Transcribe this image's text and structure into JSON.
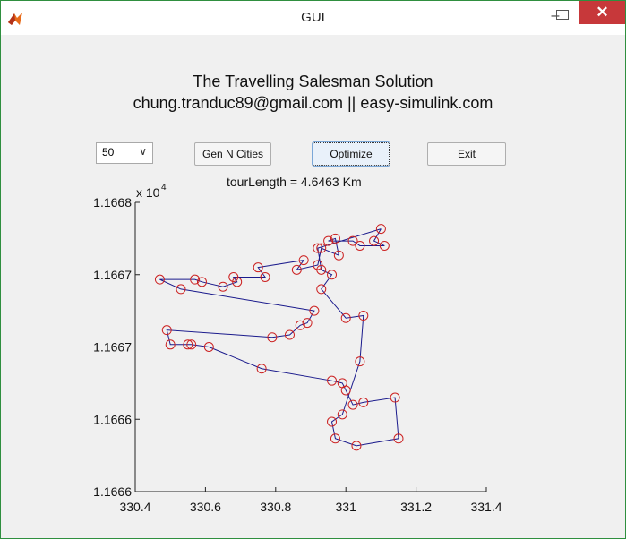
{
  "window": {
    "title": "GUI",
    "minimize_glyph": "–",
    "close_glyph": "✕",
    "icon": "matlab-icon"
  },
  "header": {
    "line1": "The Travelling Salesman Solution",
    "line2": "chung.tranduc89@gmail.com || easy-simulink.com"
  },
  "controls": {
    "city_count_value": "50",
    "dropdown_glyph": "∨",
    "gen_button": "Gen N Cities",
    "optimize_button": "Optimize",
    "exit_button": "Exit"
  },
  "status": {
    "tour_length": "tourLength = 4.6463 Km"
  },
  "chart_data": {
    "type": "line",
    "title": "",
    "xlabel": "",
    "ylabel": "",
    "y_exponent": "x 10",
    "y_exponent_power": "4",
    "xlim": [
      330.4,
      331.4
    ],
    "ylim": [
      11665.6,
      11666.8
    ],
    "x_tick_labels": [
      "330.4",
      "330.6",
      "330.8",
      "331",
      "331.2",
      "331.4"
    ],
    "y_tick_labels": [
      "1.1666",
      "1.1666",
      "1.1667",
      "1.1667",
      "1.1668"
    ],
    "line_color": "#1a1a8c",
    "marker_color": "#cc2222",
    "grid": false,
    "series": [
      {
        "x": [
          331.1,
          331.08,
          331.11,
          331.04,
          331.02,
          330.95,
          330.97,
          330.98,
          330.93,
          330.92,
          330.86,
          330.88,
          330.75,
          330.77,
          330.68,
          330.69,
          330.65,
          330.59,
          330.57,
          330.47,
          330.53,
          330.91,
          330.89,
          330.87,
          330.84,
          330.79,
          330.49,
          330.5,
          330.55,
          330.56,
          330.61,
          330.76,
          330.96,
          330.99,
          331.0,
          331.02,
          331.05,
          331.14,
          331.15,
          331.03,
          330.97,
          330.96,
          330.99,
          331.04,
          331.05,
          331.0,
          330.93,
          330.96,
          330.93,
          330.92
        ],
        "y": [
          11666.69,
          11666.64,
          11666.62,
          11666.62,
          11666.64,
          11666.64,
          11666.65,
          11666.58,
          11666.61,
          11666.54,
          11666.52,
          11666.56,
          11666.53,
          11666.49,
          11666.49,
          11666.47,
          11666.45,
          11666.47,
          11666.48,
          11666.48,
          11666.44,
          11666.35,
          11666.3,
          11666.29,
          11666.25,
          11666.24,
          11666.27,
          11666.21,
          11666.21,
          11666.21,
          11666.2,
          11666.11,
          11666.06,
          11666.05,
          11666.02,
          11665.96,
          11665.97,
          11665.99,
          11665.82,
          11665.79,
          11665.82,
          11665.89,
          11665.92,
          11666.14,
          11666.33,
          11666.32,
          11666.44,
          11666.5,
          11666.52,
          11666.61
        ]
      }
    ]
  }
}
